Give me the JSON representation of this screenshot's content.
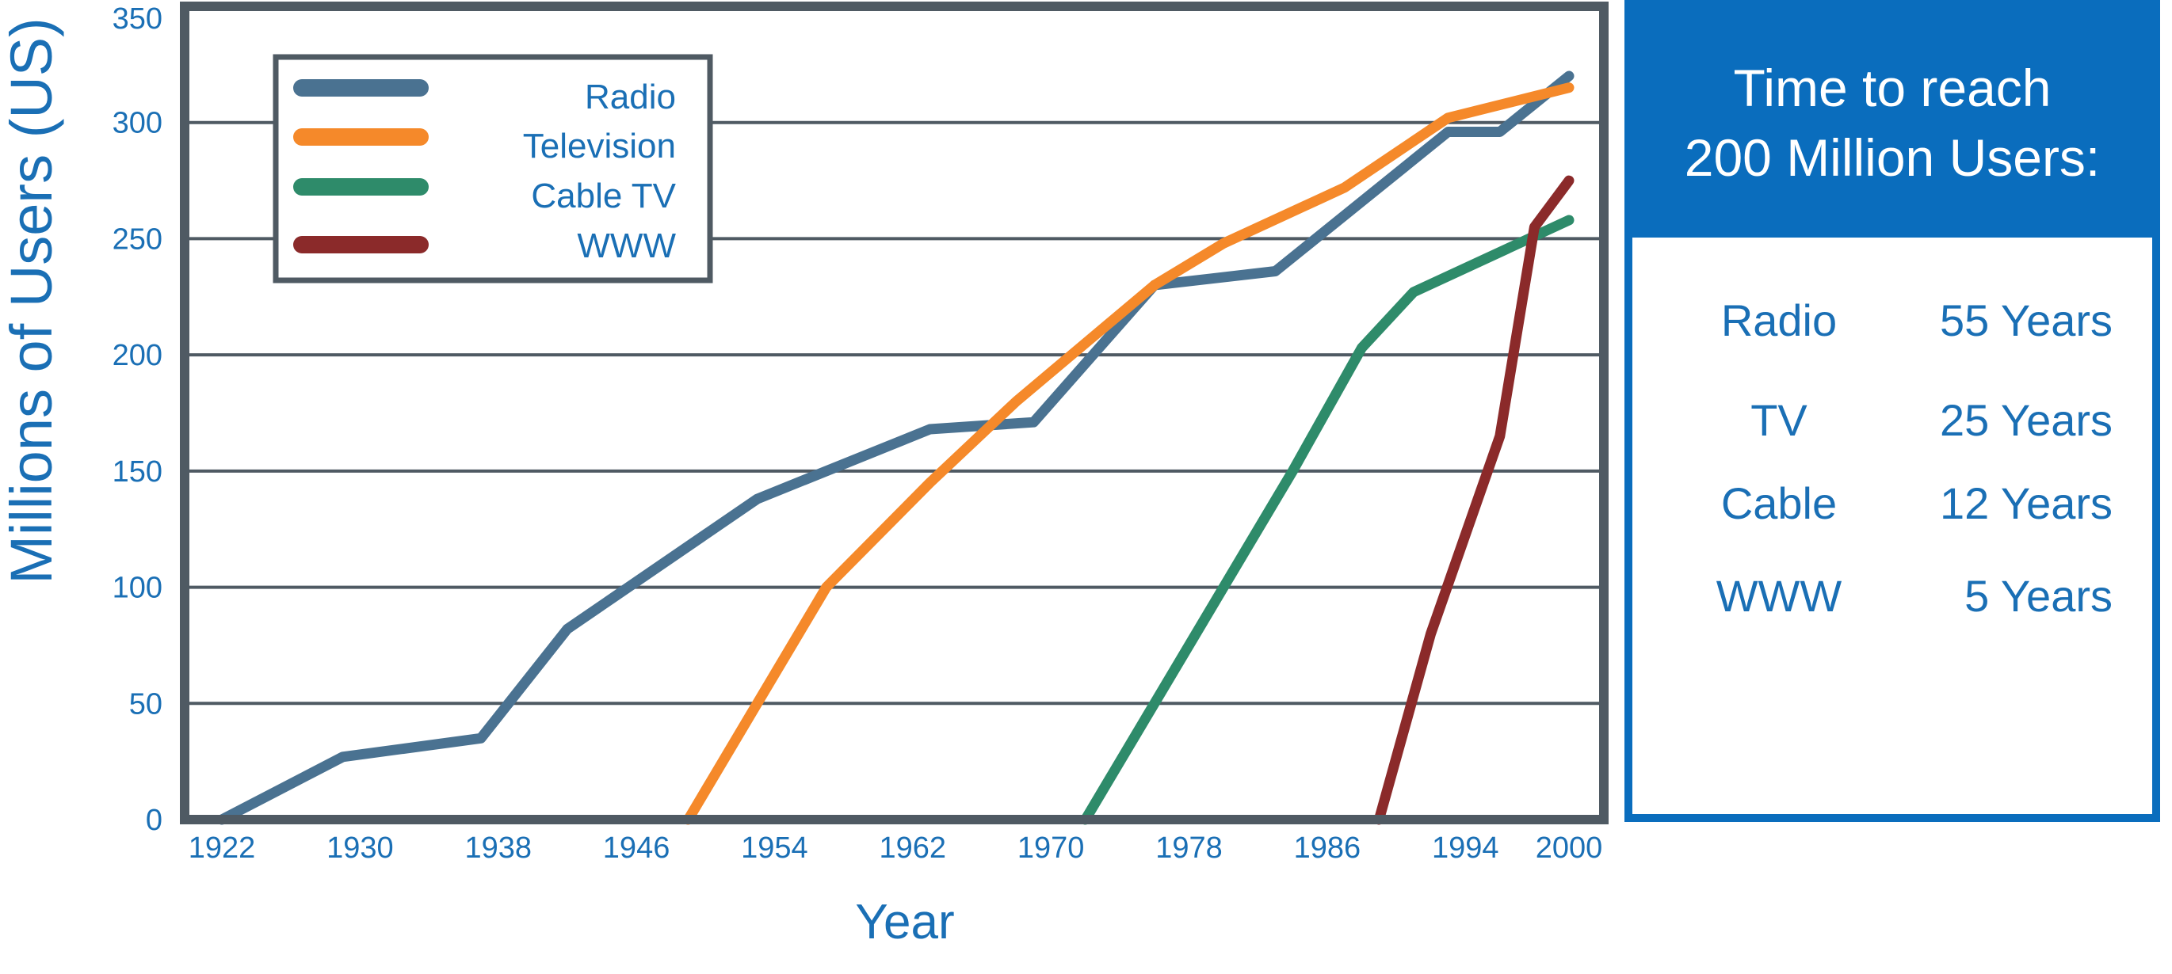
{
  "chart_data": {
    "type": "line",
    "xlabel": "Year",
    "ylabel": "Millions of Users (US)",
    "x_ticks": [
      "1922",
      "1930",
      "1938",
      "1946",
      "1954",
      "1962",
      "1970",
      "1978",
      "1986",
      "1994",
      "2000"
    ],
    "y_ticks": [
      "0",
      "50",
      "100",
      "150",
      "200",
      "250",
      "300",
      "350"
    ],
    "xlim": [
      1920,
      2002
    ],
    "ylim": [
      0,
      350
    ],
    "grid": "horizontal",
    "legend_position": "top-left",
    "series": [
      {
        "name": "Radio",
        "color": "#4a7291",
        "points": [
          [
            1922,
            0
          ],
          [
            1929,
            27
          ],
          [
            1937,
            35
          ],
          [
            1942,
            82
          ],
          [
            1953,
            138
          ],
          [
            1963,
            168
          ],
          [
            1969,
            171
          ],
          [
            1976,
            230
          ],
          [
            1983,
            236
          ],
          [
            1993,
            296
          ],
          [
            1996,
            296
          ],
          [
            2000,
            320
          ]
        ]
      },
      {
        "name": "Television",
        "color": "#f5892a",
        "points": [
          [
            1949,
            0
          ],
          [
            1953,
            50
          ],
          [
            1957,
            100
          ],
          [
            1963,
            145
          ],
          [
            1968,
            180
          ],
          [
            1976,
            230
          ],
          [
            1980,
            248
          ],
          [
            1987,
            272
          ],
          [
            1993,
            302
          ],
          [
            2000,
            315
          ]
        ]
      },
      {
        "name": "Cable TV",
        "color": "#2e8b6a",
        "points": [
          [
            1972,
            0
          ],
          [
            1976,
            50
          ],
          [
            1980,
            100
          ],
          [
            1984,
            150
          ],
          [
            1988,
            203
          ],
          [
            1991,
            227
          ],
          [
            2000,
            258
          ]
        ]
      },
      {
        "name": "WWW",
        "color": "#8b2a2a",
        "points": [
          [
            1989,
            0
          ],
          [
            1992,
            80
          ],
          [
            1996,
            165
          ],
          [
            1998,
            255
          ],
          [
            2000,
            275
          ]
        ]
      }
    ]
  },
  "side_panel": {
    "title_line1": "Time to reach",
    "title_line2": "200 Million Users:",
    "rows": [
      {
        "name": "Radio",
        "value": "55 Years"
      },
      {
        "name": "TV",
        "value": "25 Years"
      },
      {
        "name": "Cable",
        "value": "12 Years"
      },
      {
        "name": "WWW",
        "value": "5 Years"
      }
    ]
  },
  "colors": {
    "frame": "#4f5a63",
    "grid": "#4f5a63",
    "text_blue": "#1a6fb5",
    "panel_blue": "#0a6dbd"
  }
}
